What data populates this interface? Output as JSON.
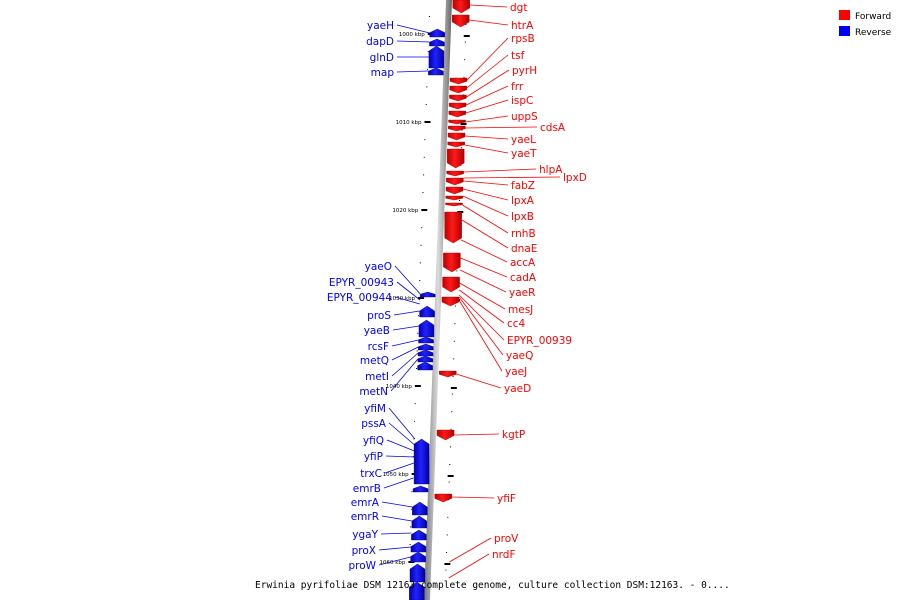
{
  "caption": "Erwinia pyrifoliae DSM 12163 complete genome, culture collection DSM:12163. - 0....",
  "colors": {
    "forward": "#ff0000",
    "reverse": "#0000ff",
    "backbone": "#999999"
  },
  "legend": [
    {
      "key": "forward",
      "label": "Forward"
    },
    {
      "key": "reverse",
      "label": "Reverse"
    }
  ],
  "ticks": [
    {
      "label": "1000 kbp"
    },
    {
      "label": "1010 kbp"
    },
    {
      "label": "1020 kbp"
    },
    {
      "label": "1030 kbp"
    },
    {
      "label": "1040 kbp"
    },
    {
      "label": "1050 kbp"
    },
    {
      "label": "1060 kbp"
    }
  ],
  "forward_genes": [
    "dgt",
    "htrA",
    "rpsB",
    "tsf",
    "pyrH",
    "frr",
    "ispC",
    "uppS",
    "cdsA",
    "yaeL",
    "yaeT",
    "hlpA",
    "lpxD",
    "fabZ",
    "lpxA",
    "lpxB",
    "rnhB",
    "dnaE",
    "accA",
    "cadA",
    "yaeR",
    "mesJ",
    "cc4",
    "EPYR_00939",
    "yaeQ",
    "yaeJ",
    "yaeD",
    "kgtP",
    "yfiF",
    "proV",
    "nrdF"
  ],
  "reverse_genes": [
    "yaeH",
    "dapD",
    "glnD",
    "map",
    "yaeO",
    "EPYR_00943",
    "EPYR_00944",
    "proS",
    "yaeB",
    "rcsF",
    "metQ",
    "metI",
    "metN",
    "yfiM",
    "pssA",
    "yfiQ",
    "yfiP",
    "trxC",
    "emrB",
    "emrA",
    "emrR",
    "ygaY",
    "proX",
    "proW"
  ]
}
